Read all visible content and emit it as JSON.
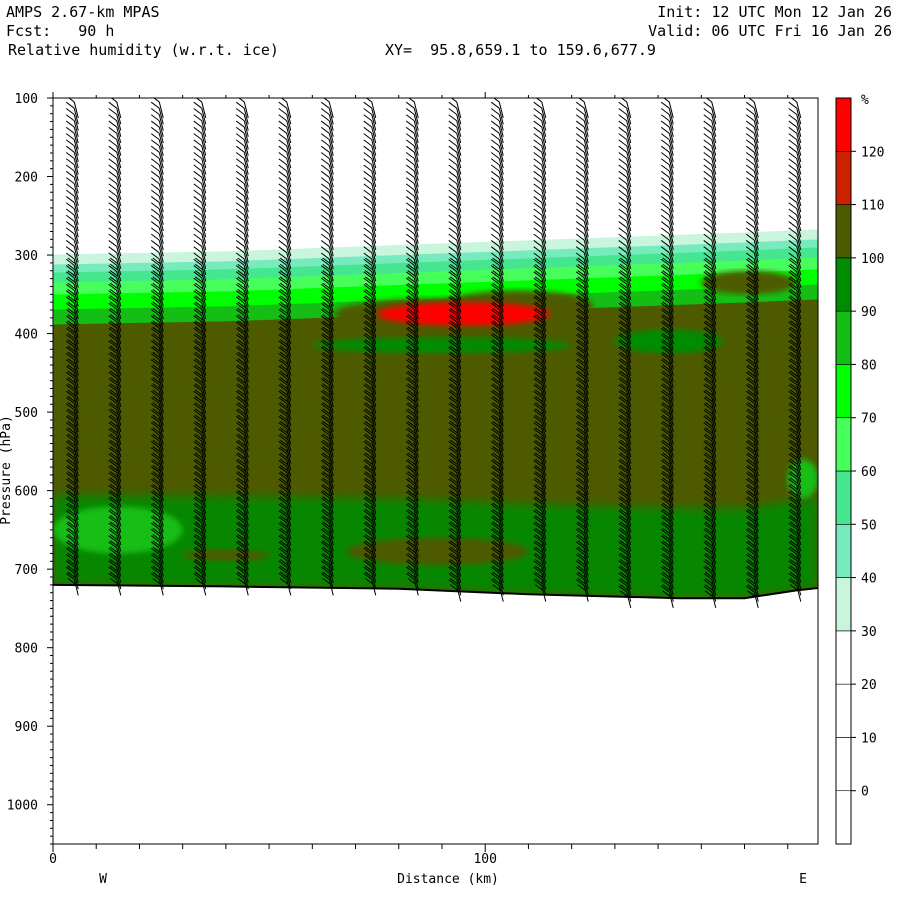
{
  "header": {
    "model": "AMPS 2.67-km MPAS",
    "fcst": "Fcst:   90 h",
    "field": "Relative humidity (w.r.t. ice)",
    "xy": "XY=  95.8,659.1 to 159.6,677.9",
    "init": "Init: 12 UTC Mon 12 Jan 26",
    "valid": "Valid: 06 UTC Fri 16 Jan 26"
  },
  "chart_data": {
    "type": "heatmap",
    "title": "Relative humidity (w.r.t. ice)",
    "xlabel": "Distance (km)",
    "ylabel": "Pressure (hPa)",
    "xlim": [
      0,
      177
    ],
    "ylim": [
      1050,
      100
    ],
    "x_ticks": [
      0,
      100
    ],
    "y_ticks": [
      100,
      200,
      300,
      400,
      500,
      600,
      700,
      800,
      900,
      1000
    ],
    "endpoint_labels": {
      "left": "W",
      "right": "E"
    },
    "colorbar": {
      "unit": "%",
      "levels": [
        0,
        10,
        20,
        30,
        40,
        50,
        60,
        70,
        80,
        90,
        100,
        110,
        120
      ],
      "colors": [
        "#ffffff",
        "#ffffff",
        "#ffffff",
        "#ffffff",
        "#c8f5dc",
        "#78ebbe",
        "#46e691",
        "#46ff5a",
        "#00ff00",
        "#14be14",
        "#008c00",
        "#4d5a00",
        "#cc2200",
        "#ff0000"
      ]
    },
    "terrain_pressure": [
      {
        "x": 0,
        "p": 720
      },
      {
        "x": 40,
        "p": 722
      },
      {
        "x": 80,
        "p": 725
      },
      {
        "x": 110,
        "p": 732
      },
      {
        "x": 145,
        "p": 737
      },
      {
        "x": 160,
        "p": 737
      },
      {
        "x": 172,
        "p": 727
      },
      {
        "x": 177,
        "p": 724
      }
    ],
    "moisture_top_pressure": [
      {
        "x": 0,
        "p": 312
      },
      {
        "x": 40,
        "p": 308
      },
      {
        "x": 80,
        "p": 300
      },
      {
        "x": 120,
        "p": 292
      },
      {
        "x": 160,
        "p": 284
      },
      {
        "x": 177,
        "p": 280
      }
    ],
    "regions": [
      {
        "level": "100-110",
        "x": [
          5,
          60
        ],
        "p": [
          475,
          555
        ]
      },
      {
        "level": "100-110",
        "x": [
          65,
          115
        ],
        "p": [
          355,
          395
        ]
      },
      {
        "level": "100-110",
        "x": [
          90,
          125
        ],
        "p": [
          345,
          385
        ]
      },
      {
        "level": "100-110",
        "x": [
          155,
          177
        ],
        "p": [
          425,
          515
        ]
      },
      {
        "level": "100-110",
        "x": [
          150,
          172
        ],
        "p": [
          320,
          350
        ]
      },
      {
        "level": "100-110",
        "x": [
          68,
          110
        ],
        "p": [
          660,
          695
        ]
      },
      {
        "level": "100-110",
        "x": [
          30,
          50
        ],
        "p": [
          675,
          690
        ]
      },
      {
        "level": ">120",
        "x": [
          75,
          115
        ],
        "p": [
          360,
          390
        ]
      },
      {
        "level": "90-100",
        "x": [
          60,
          120
        ],
        "p": [
          405,
          425
        ]
      },
      {
        "level": "90-100",
        "x": [
          130,
          155
        ],
        "p": [
          395,
          425
        ]
      },
      {
        "level": "80-90",
        "x": [
          0,
          30
        ],
        "p": [
          620,
          680
        ]
      },
      {
        "level": "80-90",
        "x": [
          170,
          177
        ],
        "p": [
          560,
          610
        ]
      }
    ],
    "wind_barb_columns": 18
  }
}
